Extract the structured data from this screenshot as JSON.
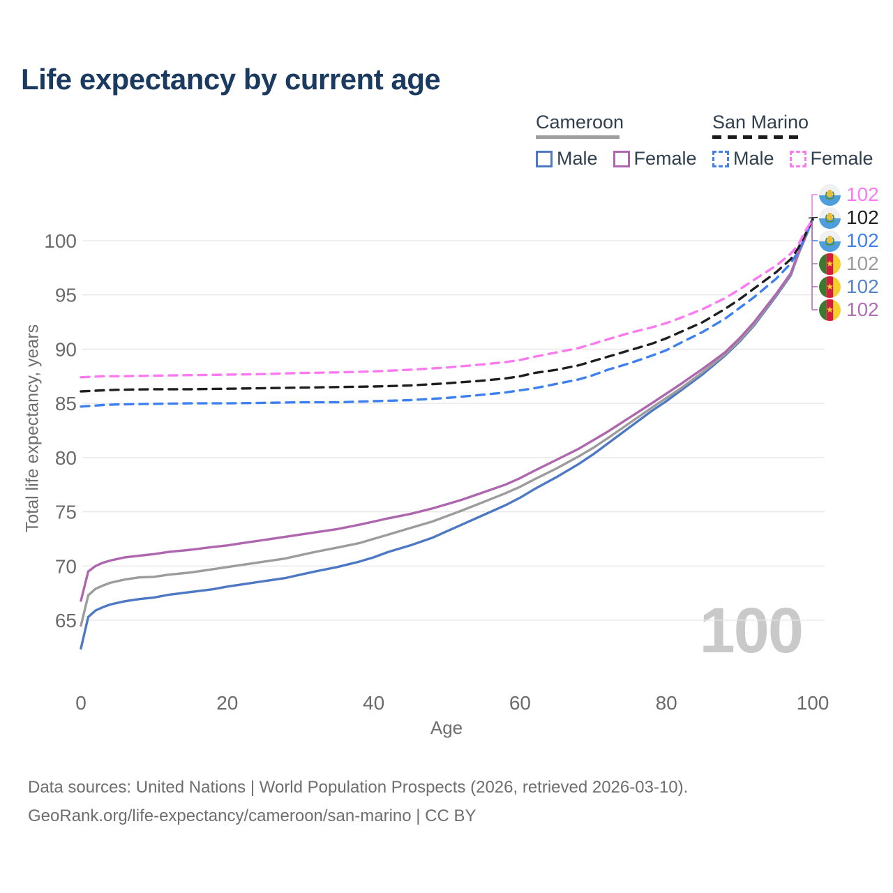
{
  "title": "Life expectancy by current age",
  "legend": {
    "groups": [
      {
        "name": "Cameroon",
        "style": "solid",
        "underline_color": "#9e9e9e",
        "items": [
          {
            "label": "Male",
            "color": "#4d78c4"
          },
          {
            "label": "Female",
            "color": "#ae67ae"
          }
        ]
      },
      {
        "name": "San Marino",
        "style": "dashed",
        "underline_color": "#1a1a1a",
        "items": [
          {
            "label": "Male",
            "color": "#3d80ee"
          },
          {
            "label": "Female",
            "color": "#fb7af0"
          }
        ]
      }
    ]
  },
  "watermark": "100",
  "endpoints": [
    {
      "flag": "san-marino",
      "series": "San Marino Female",
      "value": "102",
      "color": "#fb7af0"
    },
    {
      "flag": "san-marino",
      "series": "San Marino (total)",
      "value": "102",
      "color": "#1f1f1f"
    },
    {
      "flag": "san-marino",
      "series": "San Marino Male",
      "value": "102",
      "color": "#3d80ee"
    },
    {
      "flag": "cameroon",
      "series": "Cameroon (total)",
      "value": "102",
      "color": "#9c9c9c"
    },
    {
      "flag": "cameroon",
      "series": "Cameroon Male",
      "value": "102",
      "color": "#5585c7"
    },
    {
      "flag": "cameroon",
      "series": "Cameroon Female",
      "value": "102",
      "color": "#b06fb5"
    }
  ],
  "footer": {
    "line1": "Data sources: United Nations | World Population Prospects (2026, retrieved 2026-03-10).",
    "line2": "GeoRank.org/life-expectancy/cameroon/san-marino | CC BY"
  },
  "chart_data": {
    "type": "line",
    "title": "Life expectancy by current age",
    "xlabel": "Age",
    "ylabel": "Total life expectancy, years",
    "xlim": [
      0,
      100
    ],
    "ylim": [
      62,
      103
    ],
    "xticks": [
      0,
      20,
      40,
      60,
      80,
      100
    ],
    "yticks": [
      65,
      70,
      75,
      80,
      85,
      90,
      95,
      100
    ],
    "grid": "horizontal",
    "legend_position": "top-right",
    "series": [
      {
        "name": "Cameroon Male",
        "color": "#4d78c4",
        "dash": "solid",
        "points": [
          [
            0,
            62.4
          ],
          [
            1,
            65.3
          ],
          [
            2,
            65.9
          ],
          [
            3,
            66.2
          ],
          [
            4,
            66.45
          ],
          [
            5,
            66.6
          ],
          [
            6,
            66.75
          ],
          [
            8,
            66.95
          ],
          [
            10,
            67.1
          ],
          [
            12,
            67.35
          ],
          [
            15,
            67.6
          ],
          [
            18,
            67.85
          ],
          [
            20,
            68.1
          ],
          [
            22,
            68.3
          ],
          [
            25,
            68.6
          ],
          [
            28,
            68.9
          ],
          [
            30,
            69.2
          ],
          [
            32,
            69.5
          ],
          [
            35,
            69.9
          ],
          [
            38,
            70.4
          ],
          [
            40,
            70.8
          ],
          [
            42,
            71.3
          ],
          [
            45,
            71.9
          ],
          [
            48,
            72.6
          ],
          [
            50,
            73.2
          ],
          [
            52,
            73.8
          ],
          [
            55,
            74.7
          ],
          [
            58,
            75.6
          ],
          [
            60,
            76.3
          ],
          [
            62,
            77.1
          ],
          [
            65,
            78.2
          ],
          [
            68,
            79.4
          ],
          [
            70,
            80.3
          ],
          [
            72,
            81.3
          ],
          [
            75,
            82.8
          ],
          [
            78,
            84.3
          ],
          [
            80,
            85.2
          ],
          [
            82,
            86.2
          ],
          [
            85,
            87.7
          ],
          [
            88,
            89.4
          ],
          [
            90,
            90.7
          ],
          [
            92,
            92.2
          ],
          [
            95,
            94.9
          ],
          [
            97,
            96.8
          ],
          [
            98,
            98.7
          ],
          [
            99,
            100.3
          ],
          [
            100,
            102
          ]
        ]
      },
      {
        "name": "Cameroon (total)",
        "color": "#9c9c9c",
        "dash": "solid",
        "points": [
          [
            0,
            64.5
          ],
          [
            1,
            67.3
          ],
          [
            2,
            67.9
          ],
          [
            3,
            68.2
          ],
          [
            4,
            68.45
          ],
          [
            5,
            68.6
          ],
          [
            6,
            68.75
          ],
          [
            8,
            68.95
          ],
          [
            10,
            69.0
          ],
          [
            12,
            69.2
          ],
          [
            15,
            69.4
          ],
          [
            18,
            69.7
          ],
          [
            20,
            69.9
          ],
          [
            22,
            70.1
          ],
          [
            25,
            70.4
          ],
          [
            28,
            70.7
          ],
          [
            30,
            71.0
          ],
          [
            32,
            71.3
          ],
          [
            35,
            71.7
          ],
          [
            38,
            72.1
          ],
          [
            40,
            72.5
          ],
          [
            42,
            72.9
          ],
          [
            45,
            73.5
          ],
          [
            48,
            74.1
          ],
          [
            50,
            74.6
          ],
          [
            52,
            75.1
          ],
          [
            55,
            75.9
          ],
          [
            58,
            76.7
          ],
          [
            60,
            77.3
          ],
          [
            62,
            78.0
          ],
          [
            65,
            79.0
          ],
          [
            68,
            80.1
          ],
          [
            70,
            80.9
          ],
          [
            72,
            81.8
          ],
          [
            75,
            83.2
          ],
          [
            78,
            84.6
          ],
          [
            80,
            85.5
          ],
          [
            82,
            86.4
          ],
          [
            85,
            87.9
          ],
          [
            88,
            89.5
          ],
          [
            90,
            90.8
          ],
          [
            92,
            92.3
          ],
          [
            95,
            95.0
          ],
          [
            97,
            96.9
          ],
          [
            98,
            98.75
          ],
          [
            99,
            100.35
          ],
          [
            100,
            102
          ]
        ]
      },
      {
        "name": "Cameroon Female",
        "color": "#ae67ae",
        "dash": "solid",
        "points": [
          [
            0,
            66.8
          ],
          [
            1,
            69.5
          ],
          [
            2,
            70.0
          ],
          [
            3,
            70.3
          ],
          [
            4,
            70.5
          ],
          [
            5,
            70.65
          ],
          [
            6,
            70.8
          ],
          [
            8,
            70.95
          ],
          [
            10,
            71.1
          ],
          [
            12,
            71.3
          ],
          [
            15,
            71.5
          ],
          [
            18,
            71.75
          ],
          [
            20,
            71.9
          ],
          [
            22,
            72.1
          ],
          [
            25,
            72.4
          ],
          [
            28,
            72.7
          ],
          [
            30,
            72.9
          ],
          [
            32,
            73.1
          ],
          [
            35,
            73.4
          ],
          [
            38,
            73.8
          ],
          [
            40,
            74.1
          ],
          [
            42,
            74.4
          ],
          [
            45,
            74.8
          ],
          [
            48,
            75.3
          ],
          [
            50,
            75.7
          ],
          [
            52,
            76.1
          ],
          [
            55,
            76.8
          ],
          [
            58,
            77.5
          ],
          [
            60,
            78.1
          ],
          [
            62,
            78.8
          ],
          [
            65,
            79.8
          ],
          [
            68,
            80.8
          ],
          [
            70,
            81.6
          ],
          [
            72,
            82.4
          ],
          [
            75,
            83.7
          ],
          [
            78,
            85.0
          ],
          [
            80,
            85.9
          ],
          [
            82,
            86.8
          ],
          [
            85,
            88.2
          ],
          [
            88,
            89.7
          ],
          [
            90,
            91.0
          ],
          [
            92,
            92.5
          ],
          [
            95,
            95.1
          ],
          [
            97,
            97.0
          ],
          [
            98,
            98.8
          ],
          [
            99,
            100.4
          ],
          [
            100,
            102
          ]
        ]
      },
      {
        "name": "San Marino Male",
        "color": "#3d80ee",
        "dash": "dashed",
        "points": [
          [
            0,
            84.7
          ],
          [
            3,
            84.85
          ],
          [
            5,
            84.9
          ],
          [
            10,
            84.95
          ],
          [
            15,
            85.0
          ],
          [
            20,
            85.0
          ],
          [
            25,
            85.05
          ],
          [
            30,
            85.1
          ],
          [
            35,
            85.1
          ],
          [
            40,
            85.2
          ],
          [
            45,
            85.3
          ],
          [
            50,
            85.5
          ],
          [
            55,
            85.8
          ],
          [
            58,
            86.0
          ],
          [
            60,
            86.2
          ],
          [
            62,
            86.4
          ],
          [
            65,
            86.8
          ],
          [
            68,
            87.2
          ],
          [
            70,
            87.6
          ],
          [
            72,
            88.1
          ],
          [
            75,
            88.7
          ],
          [
            78,
            89.4
          ],
          [
            80,
            89.9
          ],
          [
            82,
            90.6
          ],
          [
            85,
            91.6
          ],
          [
            88,
            92.8
          ],
          [
            90,
            93.8
          ],
          [
            92,
            94.8
          ],
          [
            95,
            96.5
          ],
          [
            97,
            97.9
          ],
          [
            98,
            99.0
          ],
          [
            99,
            100.4
          ],
          [
            100,
            102
          ]
        ]
      },
      {
        "name": "San Marino (total)",
        "color": "#1f1f1f",
        "dash": "dashed",
        "points": [
          [
            0,
            86.1
          ],
          [
            3,
            86.2
          ],
          [
            5,
            86.25
          ],
          [
            10,
            86.3
          ],
          [
            15,
            86.3
          ],
          [
            20,
            86.35
          ],
          [
            25,
            86.4
          ],
          [
            30,
            86.45
          ],
          [
            35,
            86.5
          ],
          [
            40,
            86.55
          ],
          [
            45,
            86.65
          ],
          [
            50,
            86.85
          ],
          [
            55,
            87.1
          ],
          [
            58,
            87.3
          ],
          [
            60,
            87.5
          ],
          [
            62,
            87.8
          ],
          [
            65,
            88.1
          ],
          [
            68,
            88.5
          ],
          [
            70,
            88.9
          ],
          [
            72,
            89.3
          ],
          [
            75,
            89.9
          ],
          [
            78,
            90.5
          ],
          [
            80,
            91.0
          ],
          [
            82,
            91.6
          ],
          [
            85,
            92.5
          ],
          [
            88,
            93.7
          ],
          [
            90,
            94.6
          ],
          [
            92,
            95.6
          ],
          [
            95,
            97.1
          ],
          [
            97,
            98.3
          ],
          [
            98,
            99.3
          ],
          [
            99,
            100.6
          ],
          [
            100,
            102
          ]
        ]
      },
      {
        "name": "San Marino Female",
        "color": "#fb7af0",
        "dash": "dashed",
        "points": [
          [
            0,
            87.4
          ],
          [
            3,
            87.5
          ],
          [
            5,
            87.5
          ],
          [
            10,
            87.55
          ],
          [
            15,
            87.6
          ],
          [
            20,
            87.65
          ],
          [
            25,
            87.7
          ],
          [
            30,
            87.8
          ],
          [
            35,
            87.85
          ],
          [
            40,
            87.95
          ],
          [
            45,
            88.1
          ],
          [
            50,
            88.3
          ],
          [
            55,
            88.6
          ],
          [
            58,
            88.8
          ],
          [
            60,
            89.0
          ],
          [
            62,
            89.3
          ],
          [
            65,
            89.7
          ],
          [
            68,
            90.1
          ],
          [
            70,
            90.5
          ],
          [
            72,
            90.9
          ],
          [
            75,
            91.5
          ],
          [
            78,
            92.0
          ],
          [
            80,
            92.4
          ],
          [
            82,
            92.9
          ],
          [
            85,
            93.7
          ],
          [
            88,
            94.7
          ],
          [
            90,
            95.5
          ],
          [
            92,
            96.4
          ],
          [
            95,
            97.7
          ],
          [
            97,
            98.8
          ],
          [
            98,
            99.6
          ],
          [
            99,
            100.9
          ],
          [
            100,
            102
          ]
        ]
      }
    ]
  }
}
